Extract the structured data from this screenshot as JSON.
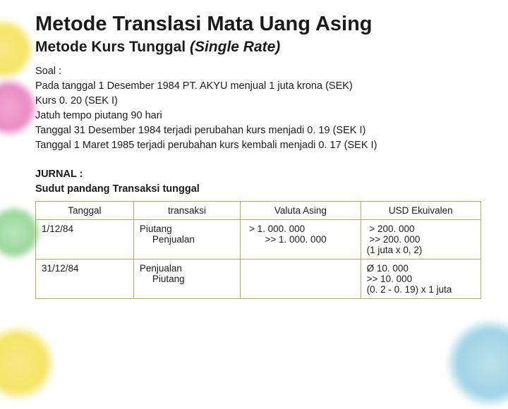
{
  "title": "Metode Translasi Mata Uang Asing",
  "subtitle_plain": "Metode Kurs  Tunggal ",
  "subtitle_italic": "(Single Rate)",
  "problem": {
    "l0": "Soal :",
    "l1": "Pada tanggal 1 Desember 1984 PT. AKYU menjual 1 juta krona (SEK)",
    "l2": "Kurs 0. 20 (SEK I)",
    "l3": "Jatuh tempo piutang 90 hari",
    "l4": "Tanggal 31 Desember 1984 terjadi perubahan kurs menjadi 0. 19  (SEK I)",
    "l5": "Tanggal 1 Maret 1985 terjadi perubahan kurs kembali menjadi 0. 17 (SEK I)"
  },
  "jurnal": {
    "h0": "JURNAL :",
    "h1": "Sudut pandang Transaksi tunggal"
  },
  "table": {
    "headers": {
      "c0": "Tanggal",
      "c1": "transaksi",
      "c2": "Valuta Asing",
      "c3": "USD Ekuivalen"
    },
    "rows": [
      {
        "c0": "1/12/84",
        "c1a": "Piutang",
        "c1b": "Penjualan",
        "c2": " > 1. 000. 000\n       >> 1. 000. 000",
        "c3": " > 200. 000\n >> 200. 000\n(1 juta x 0, 2)"
      },
      {
        "c0": "31/12/84",
        "c1a": "Penjualan",
        "c1b": "Piutang",
        "c2": "",
        "c3": "Ø 10. 000\n>> 10. 000\n(0. 2 - 0. 19) x 1 juta"
      }
    ],
    "border_color": "#bca75a",
    "font_size": 13.5
  },
  "colors": {
    "text": "#1a1a1a",
    "background": "#ffffff",
    "blob_yellow": "#f5e566",
    "blob_pink": "#e98cc5",
    "blob_green": "#9dd89d",
    "blob_blue": "#a0d4e5"
  }
}
